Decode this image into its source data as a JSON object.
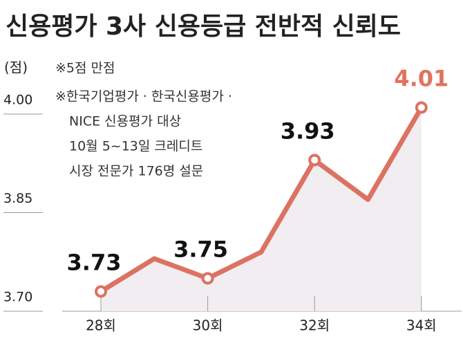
{
  "chart_data": {
    "type": "line",
    "title": "신용평가 3사 신용등급 전반적 신뢰도",
    "y_unit": "(점)",
    "notes": [
      "※5점 만점",
      "※한국기업평가 · 한국신용평가 ·",
      "NICE 신용평가 대상",
      "10월 5~13일 크레디트",
      "시장 전문가 176명 설문"
    ],
    "categories": [
      "28회",
      null,
      "30회",
      null,
      "32회",
      null,
      "34회"
    ],
    "series": [
      {
        "name": "신뢰도",
        "color": "#dc7262",
        "values": [
          3.73,
          3.78,
          3.75,
          3.79,
          3.93,
          3.87,
          4.01
        ],
        "labeled_points": [
          0,
          2,
          4,
          6
        ]
      }
    ],
    "last_label_color": "#e0735e",
    "area_color": "#f1edf0",
    "ylim": [
      3.7,
      4.1
    ],
    "yticks": [
      {
        "value": 3.7,
        "label": "3.70"
      },
      3.85,
      {
        "value": 4,
        "label": "4.00"
      }
    ]
  }
}
